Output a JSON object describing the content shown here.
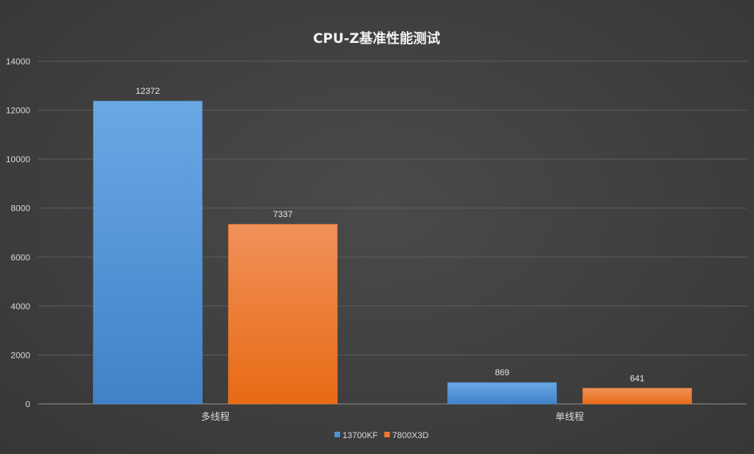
{
  "chart_data": {
    "type": "bar",
    "title": "CPU-Z基准性能测试",
    "categories": [
      "多线程",
      "单线程"
    ],
    "series": [
      {
        "name": "13700KF",
        "values": [
          12372,
          869
        ],
        "color": "#4f94d8"
      },
      {
        "name": "7800X3D",
        "values": [
          7337,
          641
        ],
        "color": "#ee7a2a"
      }
    ],
    "ylim": [
      0,
      14000
    ],
    "yticks": [
      "0",
      "2000",
      "4000",
      "6000",
      "8000",
      "10000",
      "12000",
      "14000"
    ],
    "grid": true,
    "legend_position": "bottom-center",
    "xlabel": "",
    "ylabel": ""
  }
}
